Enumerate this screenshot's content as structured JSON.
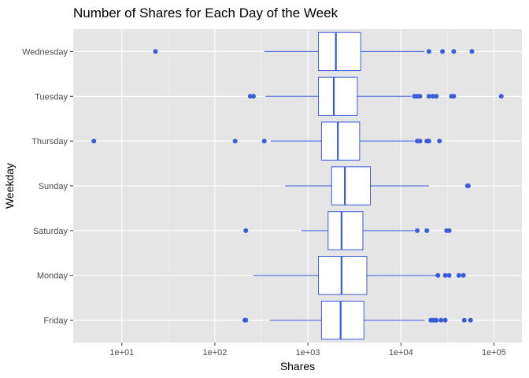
{
  "chart_data": {
    "type": "boxplot",
    "title": "Number of Shares for Each Day of the Week",
    "xlabel": "Shares",
    "ylabel": "Weekday",
    "x_scale": "log10",
    "xlim": [
      3,
      200000
    ],
    "x_ticks": [
      {
        "value": 10,
        "label": "1e+01"
      },
      {
        "value": 100,
        "label": "1e+02"
      },
      {
        "value": 1000,
        "label": "1e+03"
      },
      {
        "value": 10000,
        "label": "1e+04"
      },
      {
        "value": 100000,
        "label": "1e+05"
      }
    ],
    "grid": true,
    "colors": {
      "panel_bg": "#e5e5e5",
      "grid_major": "#ffffff",
      "grid_minor": "#f2f2f2",
      "box_stroke": "#3b5bdb",
      "box_fill": "#ffffff",
      "point": "#3b5bdb"
    },
    "categories": [
      "Friday",
      "Monday",
      "Saturday",
      "Sunday",
      "Thursday",
      "Tuesday",
      "Wednesday"
    ],
    "boxes": [
      {
        "category": "Friday",
        "whisker_low": 390,
        "q1": 1400,
        "median": 2250,
        "q3": 4000,
        "whisker_high": 18000,
        "outliers": [
          210,
          215,
          21000,
          22000,
          23000,
          24000,
          27000,
          30000,
          48000,
          56000
        ]
      },
      {
        "category": "Monday",
        "whisker_low": 260,
        "q1": 1300,
        "median": 2300,
        "q3": 4300,
        "whisker_high": 24000,
        "outliers": [
          25000,
          30000,
          33000,
          42000,
          47000
        ]
      },
      {
        "category": "Saturday",
        "whisker_low": 850,
        "q1": 1650,
        "median": 2300,
        "q3": 3900,
        "whisker_high": 14000,
        "outliers": [
          215,
          15000,
          19000,
          31000,
          33000
        ]
      },
      {
        "category": "Sunday",
        "whisker_low": 570,
        "q1": 1800,
        "median": 2500,
        "q3": 4700,
        "whisker_high": 20000,
        "outliers": [
          52000,
          53000
        ]
      },
      {
        "category": "Thursday",
        "whisker_low": 400,
        "q1": 1400,
        "median": 2100,
        "q3": 3600,
        "whisker_high": 14000,
        "outliers": [
          5,
          165,
          340,
          15000,
          16000,
          19000,
          20000,
          26000
        ]
      },
      {
        "category": "Tuesday",
        "whisker_low": 350,
        "q1": 1300,
        "median": 1900,
        "q3": 3400,
        "whisker_high": 13000,
        "outliers": [
          240,
          260,
          14000,
          15000,
          16000,
          20000,
          22000,
          24000,
          35000,
          37000,
          120000
        ]
      },
      {
        "category": "Wednesday",
        "whisker_low": 340,
        "q1": 1300,
        "median": 2000,
        "q3": 3700,
        "whisker_high": 18000,
        "outliers": [
          23,
          20000,
          28000,
          37000,
          58000
        ]
      }
    ]
  }
}
